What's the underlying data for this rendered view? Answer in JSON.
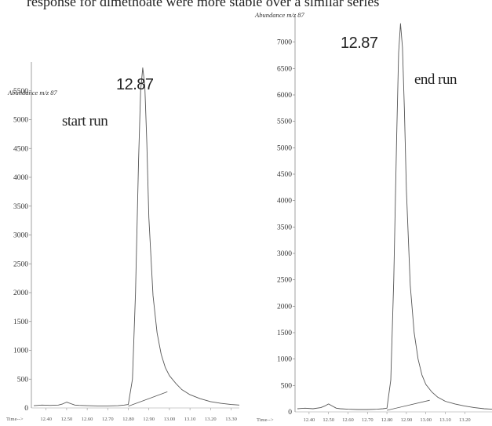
{
  "header_text": "response for dimethoate were more stable over a similar series",
  "chart_data": [
    {
      "type": "line",
      "ylabel": "Abundance m/z 87",
      "xlabel": "Time-->",
      "annotation": "start run",
      "peak_label": "12.87",
      "yticks": [
        500,
        1000,
        1500,
        2000,
        2500,
        3000,
        3500,
        4000,
        4500,
        5000,
        5500
      ],
      "ytick_labels": [
        "500",
        "1000",
        "1500",
        "2000",
        "2500",
        "3000",
        "3500",
        "4000",
        "4500",
        "5000",
        "5500"
      ],
      "zero_label": "0",
      "xticks": [
        12.4,
        12.5,
        12.6,
        12.7,
        12.8,
        12.9,
        13.0,
        13.1,
        13.2,
        13.3
      ],
      "xtick_labels": [
        "12.40",
        "12.50",
        "12.60",
        "12.70",
        "12.80",
        "12.90",
        "13.00",
        "13.10",
        "13.20",
        "13.30"
      ],
      "xlim": [
        12.34,
        13.34
      ],
      "ylim": [
        0,
        6000
      ],
      "series": [
        {
          "x": [
            12.34,
            12.38,
            12.42,
            12.46,
            12.48,
            12.5,
            12.52,
            12.54,
            12.56,
            12.6,
            12.65,
            12.7,
            12.75,
            12.78,
            12.8,
            12.82,
            12.835,
            12.85,
            12.86,
            12.87,
            12.88,
            12.89,
            12.9,
            12.92,
            12.94,
            12.96,
            12.98,
            13.0,
            13.03,
            13.06,
            13.1,
            13.15,
            13.2,
            13.25,
            13.3,
            13.34
          ],
          "y": [
            40,
            50,
            45,
            50,
            70,
            100,
            75,
            50,
            45,
            40,
            35,
            35,
            40,
            50,
            60,
            500,
            2000,
            4300,
            5500,
            5900,
            5600,
            4600,
            3300,
            1950,
            1300,
            930,
            700,
            560,
            430,
            320,
            230,
            160,
            110,
            80,
            60,
            50
          ]
        }
      ],
      "baseline": {
        "x": [
          12.8,
          12.99
        ],
        "y": [
          30,
          280
        ]
      }
    },
    {
      "type": "line",
      "ylabel": "Abundance m/z 87",
      "xlabel": "Time-->",
      "annotation": "end run",
      "peak_label": "12.87",
      "yticks": [
        500,
        1000,
        1500,
        2000,
        2500,
        3000,
        3500,
        4000,
        4500,
        5000,
        5500,
        6000,
        6500,
        7000
      ],
      "ytick_labels": [
        "500",
        "1000",
        "1500",
        "2000",
        "2500",
        "3000",
        "3500",
        "4000",
        "4500",
        "5000",
        "5500",
        "6000",
        "6500",
        "7000"
      ],
      "zero_label": "0",
      "xticks": [
        12.4,
        12.5,
        12.6,
        12.7,
        12.8,
        12.9,
        13.0,
        13.1,
        13.2
      ],
      "xtick_labels": [
        "12.40",
        "12.50",
        "12.60",
        "12.70",
        "12.80",
        "12.90",
        "13.00",
        "13.10",
        "13.20"
      ],
      "xlim": [
        12.34,
        13.34
      ],
      "ylim": [
        0,
        7500
      ],
      "series": [
        {
          "x": [
            12.34,
            12.38,
            12.42,
            12.46,
            12.48,
            12.5,
            12.52,
            12.54,
            12.56,
            12.6,
            12.65,
            12.7,
            12.75,
            12.78,
            12.8,
            12.82,
            12.835,
            12.85,
            12.86,
            12.87,
            12.88,
            12.89,
            12.9,
            12.92,
            12.94,
            12.96,
            12.98,
            13.0,
            13.03,
            13.06,
            13.1,
            13.15,
            13.2,
            13.25,
            13.3,
            13.34
          ],
          "y": [
            60,
            70,
            60,
            80,
            110,
            150,
            110,
            70,
            60,
            50,
            45,
            45,
            50,
            60,
            70,
            600,
            2500,
            5200,
            6800,
            7350,
            6900,
            5700,
            4200,
            2400,
            1500,
            1000,
            700,
            520,
            380,
            280,
            200,
            150,
            110,
            80,
            60,
            50
          ]
        }
      ],
      "baseline": {
        "x": [
          12.8,
          13.02
        ],
        "y": [
          30,
          220
        ]
      }
    }
  ]
}
